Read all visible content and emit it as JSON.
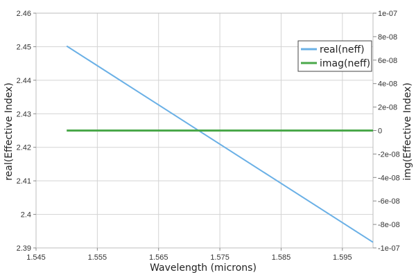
{
  "chart_data": {
    "type": "line",
    "xlabel": "Wavelength (microns)",
    "ylabel_left": "real(Effective Index)",
    "ylabel_right": "img(Effective Index)",
    "xlim": [
      1.545,
      1.6
    ],
    "ylim_left": [
      2.39,
      2.46
    ],
    "ylim_right": [
      -1e-07,
      1e-07
    ],
    "x_ticks": [
      1.545,
      1.555,
      1.565,
      1.575,
      1.585,
      1.595
    ],
    "x_tick_labels": [
      "1.545",
      "1.555",
      "1.565",
      "1.575",
      "1.585",
      "1.595"
    ],
    "y_left_ticks": [
      2.39,
      2.4,
      2.41,
      2.42,
      2.43,
      2.44,
      2.45,
      2.46
    ],
    "y_left_tick_labels": [
      "2.39",
      "2.4",
      "2.41",
      "2.42",
      "2.43",
      "2.44",
      "2.45",
      "2.46"
    ],
    "y_right_ticks": [
      -1e-07,
      -8e-08,
      -6e-08,
      -4e-08,
      -2e-08,
      0,
      2e-08,
      4e-08,
      6e-08,
      8e-08,
      1e-07
    ],
    "y_right_tick_labels": [
      "-1e-07",
      "-8e-08",
      "-6e-08",
      "-4e-08",
      "-2e-08",
      "0",
      "2e-08",
      "4e-08",
      "6e-08",
      "8e-08",
      "1e-07"
    ],
    "grid": true,
    "legend_position": "top-right",
    "series": [
      {
        "name": "real(neff)",
        "axis": "left",
        "color": "#6ab0e6",
        "x": [
          1.55,
          1.6
        ],
        "y": [
          2.4502,
          2.3917
        ]
      },
      {
        "name": "imag(neff)",
        "axis": "right",
        "color": "#4aa84a",
        "x": [
          1.55,
          1.6
        ],
        "y": [
          0,
          0
        ]
      }
    ]
  }
}
